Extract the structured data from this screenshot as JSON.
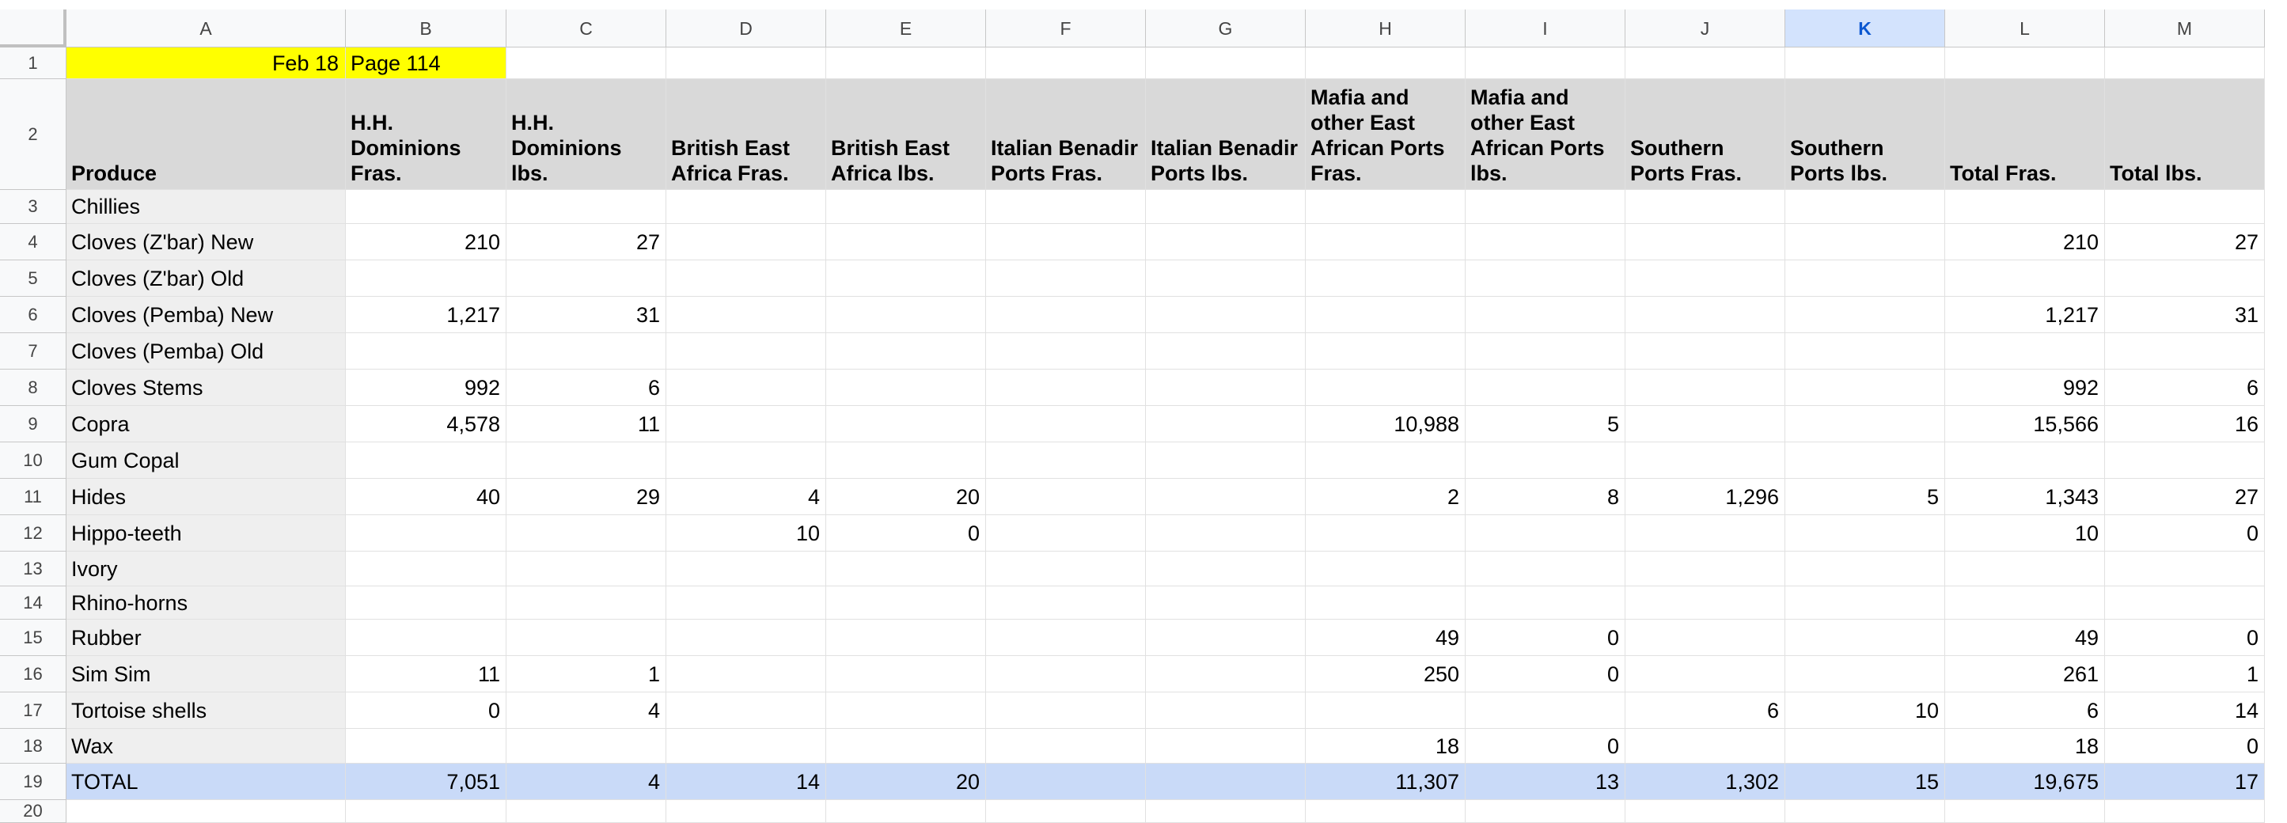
{
  "sheet": {
    "selected_column": "K",
    "columns": [
      "A",
      "B",
      "C",
      "D",
      "E",
      "F",
      "G",
      "H",
      "I",
      "J",
      "K",
      "L",
      "M"
    ],
    "row_numbers": [
      "1",
      "2",
      "3",
      "4",
      "5",
      "6",
      "7",
      "8",
      "9",
      "10",
      "11",
      "12",
      "13",
      "14",
      "15",
      "16",
      "17",
      "18",
      "19",
      "20"
    ],
    "title_cell": {
      "date": "Feb 18",
      "page": "Page 114"
    },
    "headers": [
      "Produce",
      "H.H. Dominions Fras.",
      "H.H. Dominions lbs.",
      "British East Africa Fras.",
      "British East Africa lbs.",
      "Italian Benadir Ports Fras.",
      "Italian Benadir Ports lbs.",
      "Mafia and other East African Ports Fras.",
      "Mafia and other East African Ports lbs.",
      "Southern Ports Fras.",
      "Southern Ports lbs.",
      "Total Fras.",
      "Total lbs."
    ],
    "rows": [
      [
        "Chillies",
        "",
        "",
        "",
        "",
        "",
        "",
        "",
        "",
        "",
        "",
        "",
        ""
      ],
      [
        "Cloves (Z'bar) New",
        "210",
        "27",
        "",
        "",
        "",
        "",
        "",
        "",
        "",
        "",
        "210",
        "27"
      ],
      [
        "Cloves (Z'bar) Old",
        "",
        "",
        "",
        "",
        "",
        "",
        "",
        "",
        "",
        "",
        "",
        ""
      ],
      [
        "Cloves (Pemba) New",
        "1,217",
        "31",
        "",
        "",
        "",
        "",
        "",
        "",
        "",
        "",
        "1,217",
        "31"
      ],
      [
        "Cloves (Pemba) Old",
        "",
        "",
        "",
        "",
        "",
        "",
        "",
        "",
        "",
        "",
        "",
        ""
      ],
      [
        "Cloves Stems",
        "992",
        "6",
        "",
        "",
        "",
        "",
        "",
        "",
        "",
        "",
        "992",
        "6"
      ],
      [
        "Copra",
        "4,578",
        "11",
        "",
        "",
        "",
        "",
        "10,988",
        "5",
        "",
        "",
        "15,566",
        "16"
      ],
      [
        "Gum Copal",
        "",
        "",
        "",
        "",
        "",
        "",
        "",
        "",
        "",
        "",
        "",
        ""
      ],
      [
        "Hides",
        "40",
        "29",
        "4",
        "20",
        "",
        "",
        "2",
        "8",
        "1,296",
        "5",
        "1,343",
        "27"
      ],
      [
        "Hippo-teeth",
        "",
        "",
        "10",
        "0",
        "",
        "",
        "",
        "",
        "",
        "",
        "10",
        "0"
      ],
      [
        "Ivory",
        "",
        "",
        "",
        "",
        "",
        "",
        "",
        "",
        "",
        "",
        "",
        ""
      ],
      [
        "Rhino-horns",
        "",
        "",
        "",
        "",
        "",
        "",
        "",
        "",
        "",
        "",
        "",
        ""
      ],
      [
        "Rubber",
        "",
        "",
        "",
        "",
        "",
        "",
        "49",
        "0",
        "",
        "",
        "49",
        "0"
      ],
      [
        "Sim Sim",
        "11",
        "1",
        "",
        "",
        "",
        "",
        "250",
        "0",
        "",
        "",
        "261",
        "1"
      ],
      [
        "Tortoise shells",
        "0",
        "4",
        "",
        "",
        "",
        "",
        "",
        "",
        "6",
        "10",
        "6",
        "14"
      ],
      [
        "Wax",
        "",
        "",
        "",
        "",
        "",
        "",
        "18",
        "0",
        "",
        "",
        "18",
        "0"
      ],
      [
        "TOTAL",
        "7,051",
        "4",
        "14",
        "20",
        "",
        "",
        "11,307",
        "13",
        "1,302",
        "15",
        "19,675",
        "17"
      ]
    ]
  }
}
